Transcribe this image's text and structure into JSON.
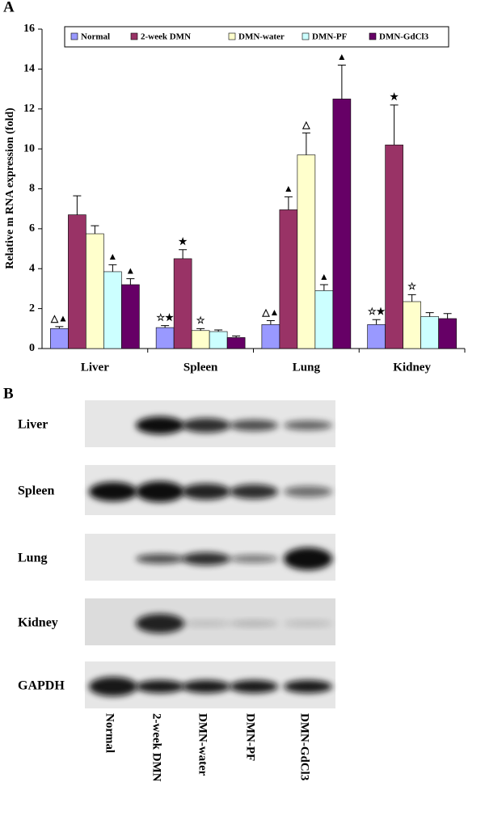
{
  "panel_labels": [
    "A",
    "B"
  ],
  "chart_data": {
    "type": "bar",
    "ylabel": "Relative m RNA expression (fold)",
    "categories": [
      "Liver",
      "Spleen",
      "Lung",
      "Kidney"
    ],
    "ylim": [
      0,
      16
    ],
    "yticks": [
      0,
      2,
      4,
      6,
      8,
      10,
      12,
      14,
      16
    ],
    "series": [
      {
        "name": "Normal",
        "color": "#9999ff",
        "values": [
          1.0,
          1.05,
          1.2,
          1.2
        ],
        "errors": [
          0.1,
          0.1,
          0.2,
          0.25
        ],
        "markers": [
          "△▲",
          "☆★",
          "△▲",
          "☆★"
        ]
      },
      {
        "name": "2-week DMN",
        "color": "#993366",
        "values": [
          6.7,
          4.5,
          6.95,
          10.2
        ],
        "errors": [
          0.95,
          0.45,
          0.65,
          2.0
        ],
        "markers": [
          null,
          "★",
          "▲",
          "★"
        ]
      },
      {
        "name": "DMN-water",
        "color": "#ffffcc",
        "values": [
          5.75,
          0.9,
          9.7,
          2.35
        ],
        "errors": [
          0.4,
          0.1,
          1.1,
          0.35
        ],
        "markers": [
          null,
          "☆",
          "△",
          "☆"
        ]
      },
      {
        "name": "DMN-PF",
        "color": "#ccffff",
        "values": [
          3.85,
          0.85,
          2.9,
          1.6
        ],
        "errors": [
          0.35,
          0.08,
          0.3,
          0.2
        ],
        "markers": [
          "▲",
          null,
          "▲",
          null
        ]
      },
      {
        "name": "DMN-GdCl3",
        "color": "#660066",
        "values": [
          3.2,
          0.55,
          12.5,
          1.5
        ],
        "errors": [
          0.3,
          0.08,
          1.7,
          0.25
        ],
        "markers": [
          "▲",
          null,
          "▲",
          null
        ]
      }
    ]
  },
  "blot": {
    "rows": [
      "Liver",
      "Spleen",
      "Lung",
      "Kidney",
      "GAPDH"
    ],
    "lanes": [
      "Normal",
      "2-week DMN",
      "DMN-water",
      "DMN-PF",
      "DMN-GdCl3"
    ]
  }
}
